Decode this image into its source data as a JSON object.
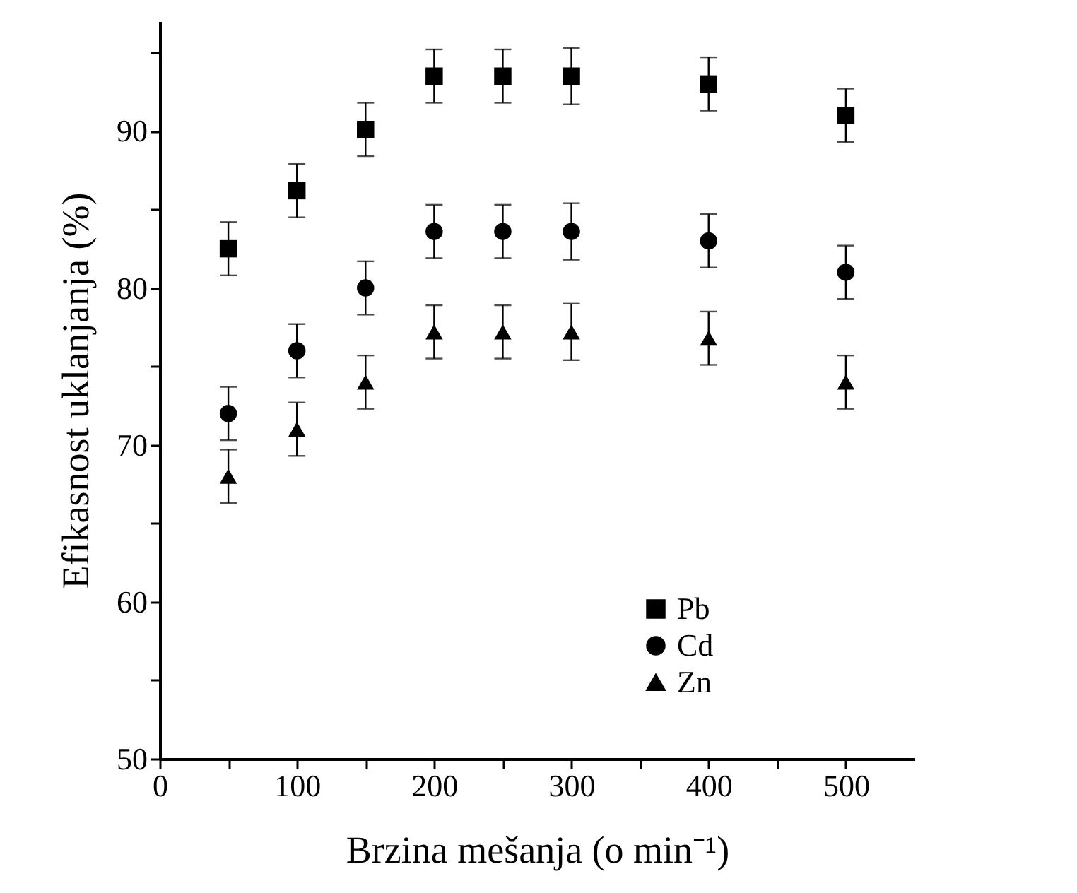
{
  "chart_data": {
    "type": "scatter",
    "xlabel": "Brzina mešanja (o min⁻¹)",
    "ylabel": "Efikasnost uklanjanja (%)",
    "x": [
      50,
      100,
      150,
      200,
      250,
      300,
      400,
      500
    ],
    "series": [
      {
        "name": "Pb",
        "color": "#000000",
        "marker": "square",
        "values": [
          82.5,
          86.2,
          90.1,
          93.5,
          93.5,
          93.5,
          93.0,
          91.0
        ],
        "errors": [
          1.7,
          1.7,
          1.7,
          1.7,
          1.7,
          1.8,
          1.7,
          1.7
        ]
      },
      {
        "name": "Cd",
        "color": "#000000",
        "marker": "circle",
        "values": [
          72.0,
          76.0,
          80.0,
          83.6,
          83.6,
          83.6,
          83.0,
          81.0
        ],
        "errors": [
          1.7,
          1.7,
          1.7,
          1.7,
          1.7,
          1.8,
          1.7,
          1.7
        ]
      },
      {
        "name": "Zn",
        "color": "#000000",
        "marker": "triangle",
        "values": [
          68.0,
          71.0,
          74.0,
          77.2,
          77.2,
          77.2,
          76.8,
          74.0
        ],
        "errors": [
          1.7,
          1.7,
          1.7,
          1.7,
          1.7,
          1.8,
          1.7,
          1.7
        ]
      }
    ],
    "xlim": [
      0,
      550
    ],
    "ylim": [
      50,
      97
    ],
    "xticks": [
      0,
      {
        "value": 50,
        "label": null
      },
      100,
      {
        "value": 150,
        "label": null
      },
      200,
      {
        "value": 250,
        "label": null
      },
      300,
      {
        "value": 350,
        "label": null
      },
      400,
      {
        "value": 450,
        "label": null
      },
      500
    ],
    "yticks": [
      50,
      {
        "value": 55,
        "label": null
      },
      60,
      {
        "value": 65,
        "label": null
      },
      70,
      {
        "value": 75,
        "label": null
      },
      80,
      {
        "value": 85,
        "label": null
      },
      90,
      {
        "value": 95,
        "label": null
      }
    ],
    "grid": false,
    "legend": "bottom right"
  }
}
